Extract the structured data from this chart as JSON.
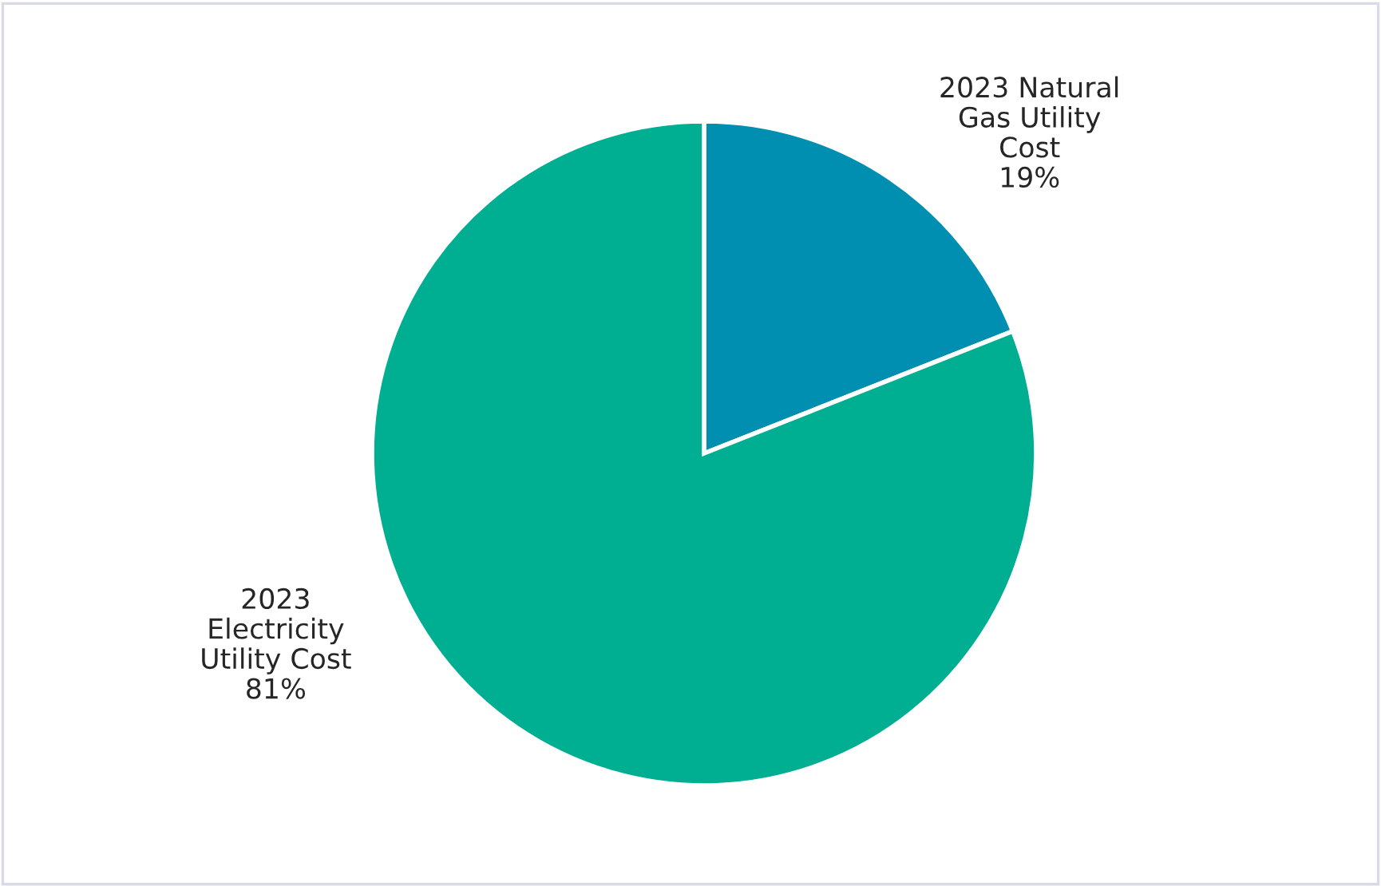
{
  "chart_data": {
    "type": "pie",
    "categories": [
      "2023 Natural\nGas Utility\nCost",
      "2023\nElectricity\nUtility Cost"
    ],
    "values": [
      19,
      81
    ],
    "value_labels": [
      "19%",
      "81%"
    ],
    "colors": [
      "#008fb0",
      "#00ae91"
    ],
    "legend": false
  }
}
